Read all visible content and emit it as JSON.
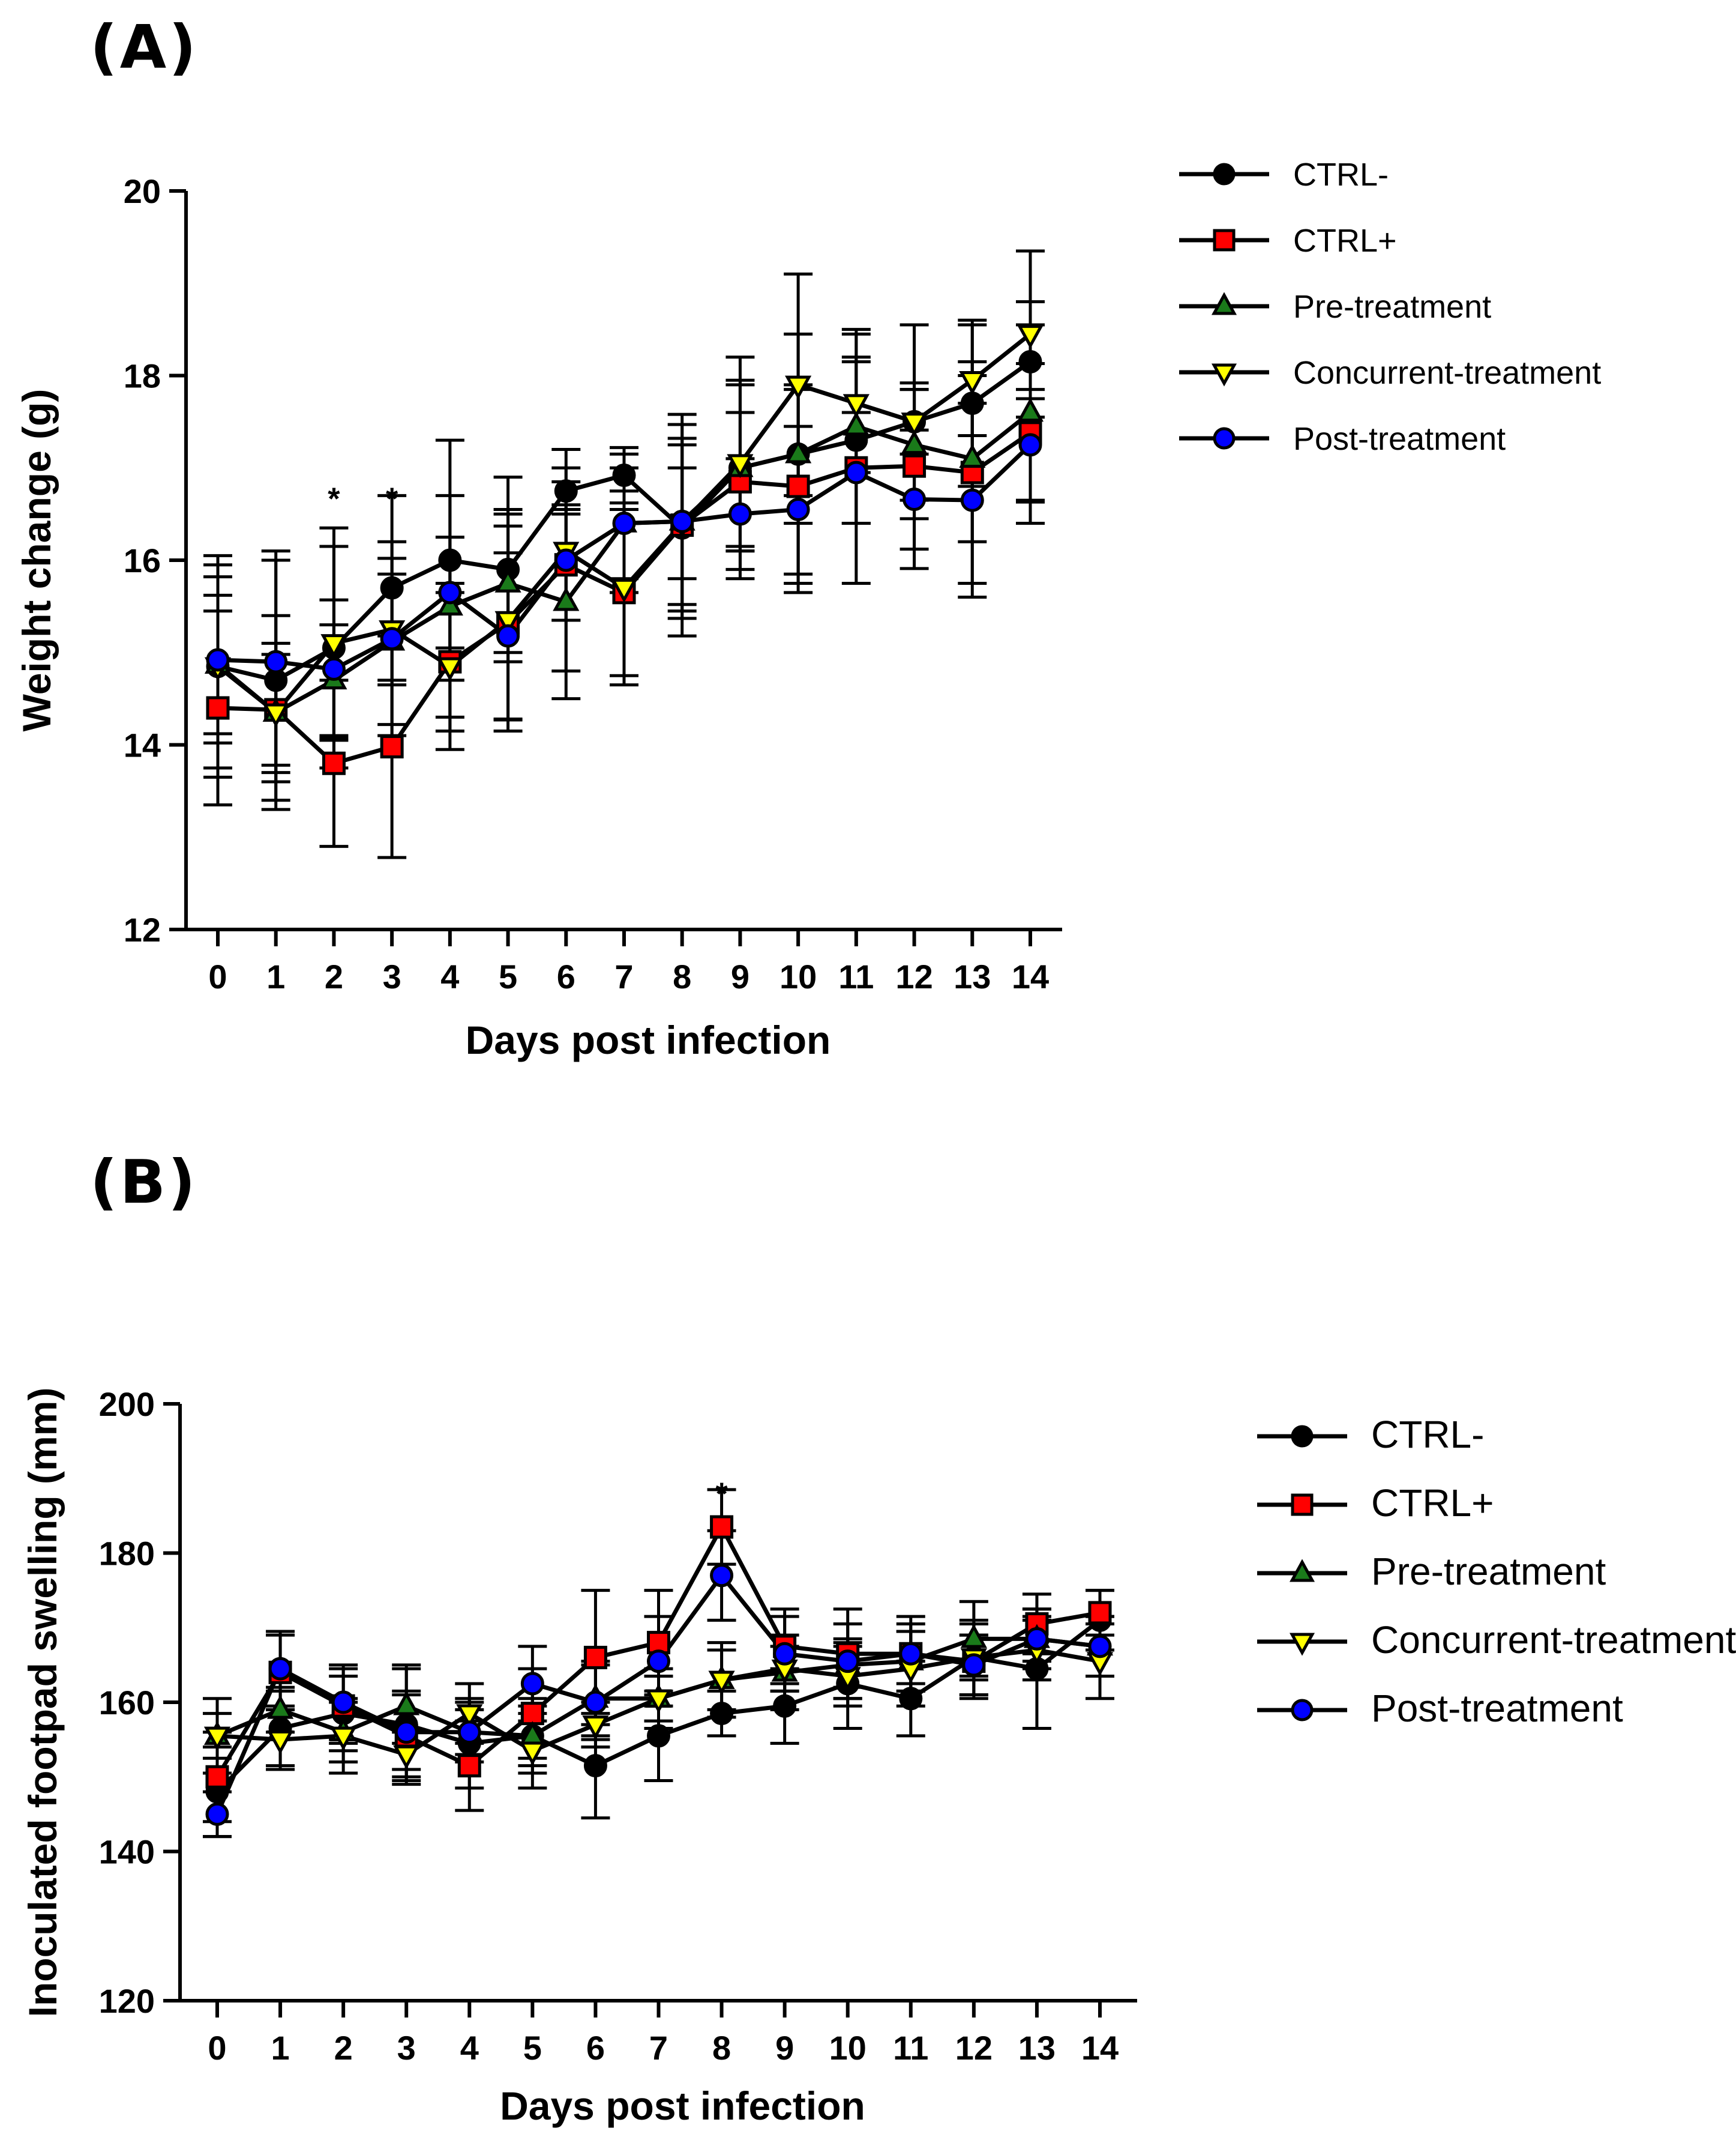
{
  "panels": {
    "a": {
      "label": "(A)"
    },
    "b": {
      "label": "(B)"
    }
  },
  "legend": {
    "ctrl_neg": "CTRL-",
    "ctrl_pos": "CTRL+",
    "pre": "Pre-treatment",
    "concurrent": "Concurrent-treatment",
    "post": "Post-treatment"
  },
  "chart_data": [
    {
      "type": "line",
      "panel": "(A)",
      "title": "",
      "xlabel": "Days post infection",
      "ylabel": "Weight change (g)",
      "x": [
        0,
        1,
        2,
        3,
        4,
        5,
        6,
        7,
        8,
        9,
        10,
        11,
        12,
        13,
        14
      ],
      "xlim": [
        -0.5,
        14.5
      ],
      "ylim": [
        12,
        20
      ],
      "yticks": [
        12,
        14,
        16,
        18,
        20
      ],
      "significance": [
        {
          "day": 2,
          "mark": "*"
        },
        {
          "day": 3,
          "mark": "*"
        }
      ],
      "series": [
        {
          "name": "CTRL-",
          "marker": "circle",
          "color": "#000000",
          "values": [
            14.85,
            14.7,
            15.05,
            15.7,
            16.0,
            15.9,
            16.75,
            16.92,
            16.35,
            17.0,
            17.15,
            17.3,
            17.5,
            17.7,
            18.15
          ],
          "errors": [
            1.1,
            1.3,
            1.3,
            1.0,
            1.3,
            1.0,
            0.25,
            0.3,
            0.9,
            0.9,
            1.3,
            0.9,
            0.35,
            0.9,
            0.4
          ]
        },
        {
          "name": "CTRL+",
          "marker": "square",
          "color": "#ff0000",
          "values": [
            14.4,
            14.38,
            13.8,
            13.98,
            14.9,
            15.32,
            15.95,
            15.65,
            16.38,
            16.85,
            16.8,
            17.0,
            17.02,
            16.95,
            17.38
          ]
        },
        {
          "name": "Pre-treatment",
          "marker": "triangle-up",
          "color": "#1a7a1a",
          "values": [
            14.87,
            14.35,
            14.7,
            15.12,
            15.5,
            15.75,
            15.55,
            16.4,
            16.42,
            17.0,
            17.15,
            17.45,
            17.25,
            17.1,
            17.6
          ]
        },
        {
          "name": "Concurrent-treatment",
          "marker": "triangle-down",
          "color": "#ffff00",
          "values": [
            14.85,
            14.35,
            15.1,
            15.25,
            14.85,
            15.35,
            16.1,
            15.7,
            16.4,
            17.05,
            17.9,
            17.7,
            17.5,
            17.95,
            18.45
          ]
        },
        {
          "name": "Post-treatment",
          "marker": "circle",
          "color": "#0000ff",
          "values": [
            14.92,
            14.9,
            14.82,
            15.15,
            15.65,
            15.18,
            16.0,
            16.4,
            16.42,
            16.5,
            16.55,
            16.95,
            16.66,
            16.65,
            17.25
          ]
        }
      ]
    },
    {
      "type": "line",
      "panel": "(B)",
      "title": "",
      "xlabel": "Days post infection",
      "ylabel": "Inoculated footpad swelling (mm)",
      "x": [
        0,
        1,
        2,
        3,
        4,
        5,
        6,
        7,
        8,
        9,
        10,
        11,
        12,
        13,
        14
      ],
      "xlim": [
        -0.5,
        14.5
      ],
      "ylim": [
        120,
        200
      ],
      "yticks": [
        120,
        140,
        160,
        180,
        200
      ],
      "significance": [
        {
          "day": 8,
          "mark": "*"
        }
      ],
      "series": [
        {
          "name": "CTRL-",
          "marker": "circle",
          "color": "#000000",
          "values": [
            148,
            156.5,
            158.5,
            157,
            154.5,
            155.5,
            151.5,
            155.5,
            158.5,
            159.5,
            162.5,
            160.5,
            166,
            164.5,
            171
          ],
          "errors": [
            6,
            5,
            5,
            8,
            6,
            5,
            7,
            6,
            3,
            5,
            6,
            5,
            5,
            8,
            4
          ]
        },
        {
          "name": "CTRL+",
          "marker": "square",
          "color": "#ff0000",
          "values": [
            150,
            164,
            159.5,
            155.5,
            151.5,
            158.5,
            166,
            168,
            183.5,
            167.5,
            166.5,
            166.5,
            165.5,
            170.5,
            172
          ],
          "errors": [
            6,
            5,
            5,
            6,
            6,
            6,
            9,
            7,
            5,
            5,
            6,
            5,
            5,
            4,
            3
          ]
        },
        {
          "name": "Pre-treatment",
          "marker": "triangle-up",
          "color": "#1a7a1a",
          "values": [
            155.5,
            159,
            156,
            159.5,
            156,
            155.5,
            160.5,
            160.5,
            163,
            164,
            165,
            165.5,
            168.5,
            168.5,
            167.5
          ]
        },
        {
          "name": "Concurrent-treatment",
          "marker": "triangle-down",
          "color": "#ffff00",
          "values": [
            155.5,
            155,
            155.5,
            153,
            158.5,
            153.5,
            157,
            160.5,
            163,
            164.5,
            163.5,
            164.5,
            166,
            167,
            165.5
          ]
        },
        {
          "name": "Post-treatment",
          "marker": "circle",
          "color": "#0000ff",
          "values": [
            145,
            164.5,
            160,
            156,
            156,
            162.5,
            160,
            165.5,
            177,
            166.5,
            165.5,
            166.5,
            165,
            168.5,
            167.5
          ],
          "errors": [
            3,
            5,
            5,
            5,
            4,
            5,
            5,
            6,
            6,
            5,
            5,
            4,
            4,
            4,
            4
          ]
        }
      ]
    }
  ]
}
